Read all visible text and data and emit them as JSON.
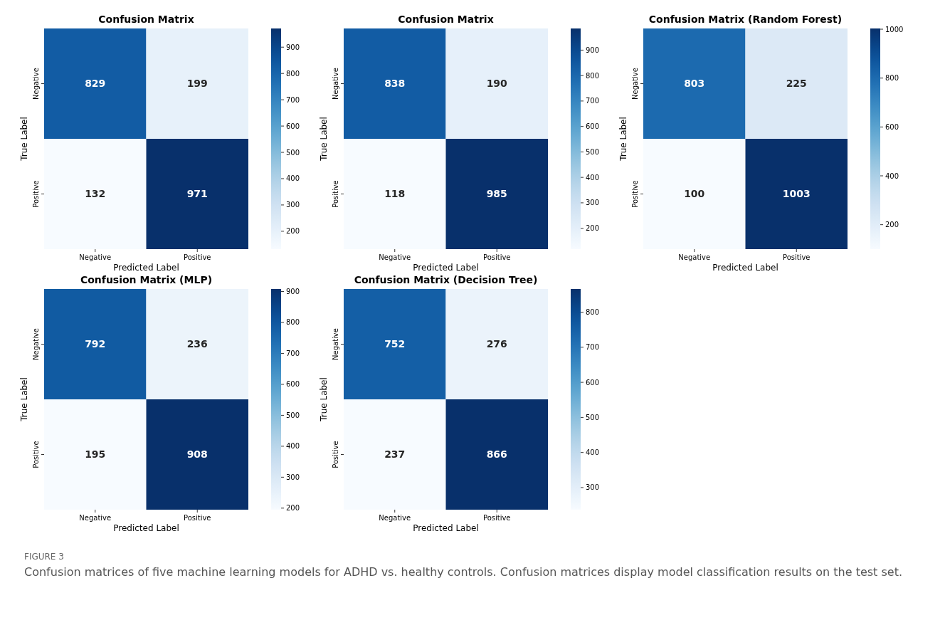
{
  "chart_data": [
    {
      "type": "heatmap",
      "title": "Confusion Matrix",
      "xlabel": "Predicted Label",
      "ylabel": "True Label",
      "categories": [
        "Negative",
        "Positive"
      ],
      "y_categories": [
        "Negative",
        "Positive"
      ],
      "cells": [
        [
          829,
          199
        ],
        [
          132,
          971
        ]
      ],
      "clim": [
        132,
        971
      ],
      "cticks": [
        200,
        300,
        400,
        500,
        600,
        700,
        800,
        900
      ],
      "data_labels": true,
      "annotations": [
        "FIGURE 3",
        "Confusion matrices of five machine learning models for ADHD vs. healthy controls. Confusion matrices display model classification results on the test set."
      ]
    },
    {
      "type": "heatmap",
      "title": "Confusion Matrix",
      "xlabel": "Predicted Label",
      "ylabel": "True Label",
      "categories": [
        "Negative",
        "Positive"
      ],
      "y_categories": [
        "Negative",
        "Positive"
      ],
      "cells": [
        [
          838,
          190
        ],
        [
          118,
          985
        ]
      ],
      "clim": [
        118,
        985
      ],
      "cticks": [
        200,
        300,
        400,
        500,
        600,
        700,
        800,
        900
      ],
      "data_labels": true
    },
    {
      "type": "heatmap",
      "title": "Confusion Matrix (Random Forest)",
      "xlabel": "Predicted Label",
      "ylabel": "True Label",
      "categories": [
        "Negative",
        "Positive"
      ],
      "y_categories": [
        "Negative",
        "Positive"
      ],
      "cells": [
        [
          803,
          225
        ],
        [
          100,
          1003
        ]
      ],
      "clim": [
        100,
        1003
      ],
      "cticks": [
        200,
        400,
        600,
        800,
        1000
      ],
      "data_labels": true
    },
    {
      "type": "heatmap",
      "title": "Confusion Matrix (MLP)",
      "xlabel": "Predicted Label",
      "ylabel": "True Label",
      "categories": [
        "Negative",
        "Positive"
      ],
      "y_categories": [
        "Negative",
        "Positive"
      ],
      "cells": [
        [
          792,
          236
        ],
        [
          195,
          908
        ]
      ],
      "clim": [
        195,
        908
      ],
      "cticks": [
        200,
        300,
        400,
        500,
        600,
        700,
        800,
        900
      ],
      "data_labels": true
    },
    {
      "type": "heatmap",
      "title": "Confusion Matrix (Decision Tree)",
      "xlabel": "Predicted Label",
      "ylabel": "True Label",
      "categories": [
        "Negative",
        "Positive"
      ],
      "y_categories": [
        "Negative",
        "Positive"
      ],
      "cells": [
        [
          752,
          276
        ],
        [
          237,
          866
        ]
      ],
      "clim": [
        237,
        866
      ],
      "cticks": [
        300,
        400,
        500,
        600,
        700,
        800
      ],
      "data_labels": true
    }
  ]
}
